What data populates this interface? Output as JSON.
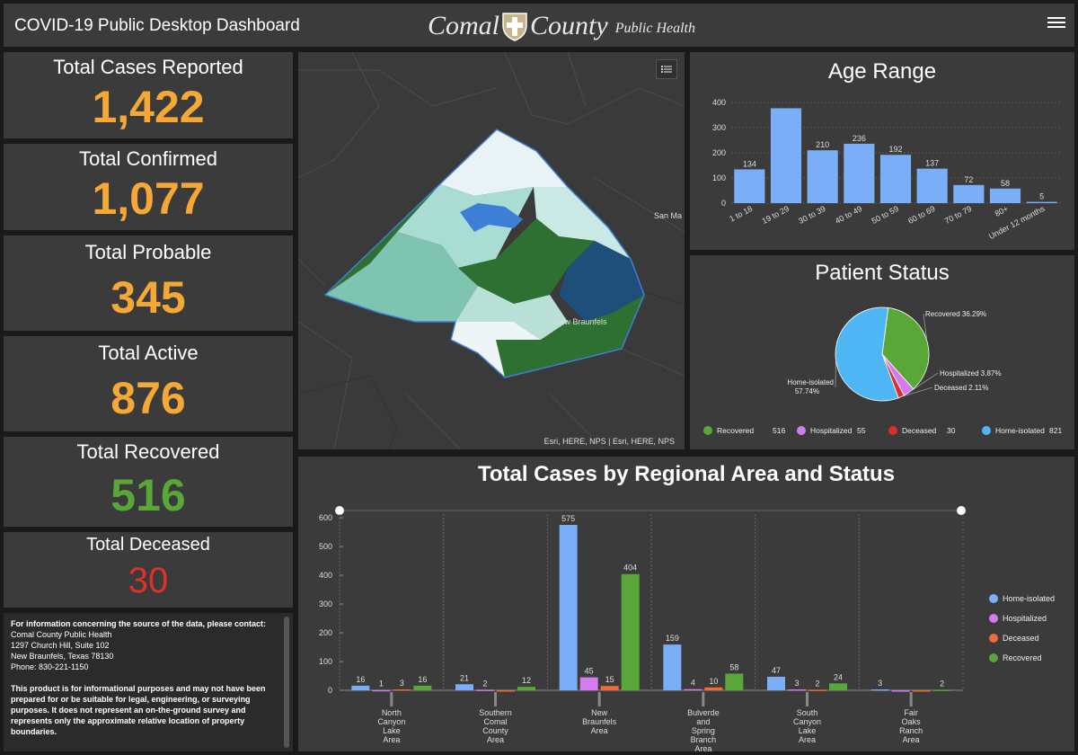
{
  "header": {
    "title": "COVID-19 Public Desktop Dashboard",
    "logo_word1": "Comal",
    "logo_word2": "County",
    "logo_word3": "Public Health"
  },
  "cards": {
    "reported": {
      "label": "Total Cases Reported",
      "value": "1,422",
      "color": "#f5a836"
    },
    "confirmed": {
      "label": "Total Confirmed",
      "value": "1,077",
      "color": "#f5a836"
    },
    "probable": {
      "label": "Total Probable",
      "value": "345",
      "color": "#f5a836"
    },
    "active": {
      "label": "Total Active",
      "value": "876",
      "color": "#f5a836"
    },
    "recovered": {
      "label": "Total Recovered",
      "value": "516",
      "color": "#58a738"
    },
    "deceased": {
      "label": "Total Deceased",
      "value": "30",
      "color": "#e0302a"
    }
  },
  "info": {
    "heading": "For information concerning the source of the data, please contact:",
    "line1": "Comal County Public Health",
    "line2": "1297 Church Hill, Suite 102",
    "line3": "New Braunfels, Texas 78130",
    "line4": "Phone: 830-221-1150",
    "disclaimer": "This product is for informational purposes and may not have been prepared for or be suitable for legal, engineering, or surveying purposes. It does not represent an on-the-ground survey and represents only the approximate relative location of property boundaries."
  },
  "map": {
    "label_city": "New Braunfels",
    "label_city2": "San Ma",
    "attribution": "Esri, HERE, NPS | Esri, HERE, NPS"
  },
  "age_panel": {
    "title": "Age Range"
  },
  "status_panel": {
    "title": "Patient Status"
  },
  "region_panel": {
    "title": "Total Cases by Regional Area and Status"
  },
  "chart_data": [
    {
      "type": "bar",
      "title": "Age Range",
      "categories": [
        "1 to 18",
        "19 to 29",
        "30 to 39",
        "40 to 49",
        "50 to 59",
        "60 to 69",
        "70 to 79",
        "80+",
        "Under 12 months"
      ],
      "values": [
        134,
        377,
        210,
        236,
        192,
        137,
        72,
        58,
        5
      ],
      "data_labels": [
        "134",
        "",
        "210",
        "236",
        "192",
        "137",
        "72",
        "58",
        "5"
      ],
      "ylim": [
        0,
        400
      ],
      "yticks": [
        0,
        100,
        200,
        300,
        400
      ],
      "color": "#7aaef7"
    },
    {
      "type": "pie",
      "title": "Patient Status",
      "slices": [
        {
          "name": "Recovered",
          "value": 516,
          "pct_label": "Recovered 36.29%",
          "color": "#58a738"
        },
        {
          "name": "Hospitalized",
          "value": 55,
          "pct_label": "Hospitalized 3.87%",
          "color": "#d47bf0"
        },
        {
          "name": "Deceased",
          "value": 30,
          "pct_label": "Deceased 2.11%",
          "color": "#d9302a"
        },
        {
          "name": "Home-isolated",
          "value": 821,
          "pct_label": "Home-isolated 57.74%",
          "color": "#4fb6f5"
        }
      ]
    },
    {
      "type": "bar",
      "title": "Total Cases by Regional Area and Status",
      "categories": [
        "North Canyon Lake Area",
        "Southern Comal County Area",
        "New Braunfels Area",
        "Bulverde and Spring Branch Area",
        "South Canyon Lake Area",
        "Fair Oaks Ranch Area"
      ],
      "category_lines": [
        [
          "North",
          "Canyon",
          "Lake",
          "Area"
        ],
        [
          "Southern",
          "Comal",
          "County",
          "Area"
        ],
        [
          "New",
          "Braunfels",
          "Area"
        ],
        [
          "Bulverde",
          "and",
          "Spring",
          "Branch",
          "Area"
        ],
        [
          "South",
          "Canyon",
          "Lake",
          "Area"
        ],
        [
          "Fair",
          "Oaks",
          "Ranch",
          "Area"
        ]
      ],
      "series": [
        {
          "name": "Home-isolated",
          "color": "#7aaef7",
          "values": [
            16,
            21,
            575,
            159,
            47,
            3
          ]
        },
        {
          "name": "Hospitalized",
          "color": "#d47bf0",
          "values": [
            1,
            2,
            45,
            4,
            3,
            0
          ]
        },
        {
          "name": "Deceased",
          "color": "#f06a3a",
          "values": [
            3,
            0,
            15,
            10,
            2,
            0
          ]
        },
        {
          "name": "Recovered",
          "color": "#58a738",
          "values": [
            16,
            12,
            404,
            58,
            24,
            2
          ]
        }
      ],
      "ylim": [
        0,
        600
      ],
      "yticks": [
        0,
        100,
        200,
        300,
        400,
        500,
        600
      ]
    }
  ]
}
